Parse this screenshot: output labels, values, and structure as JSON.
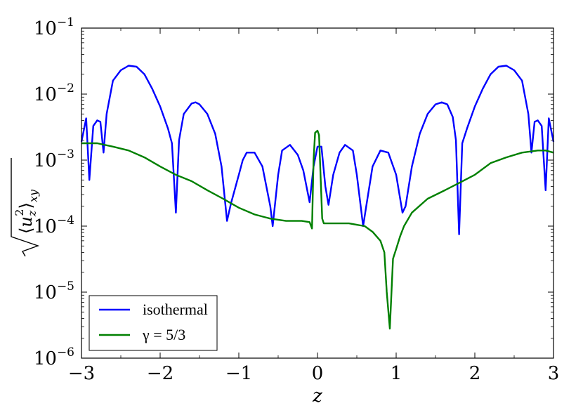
{
  "chart_data": {
    "type": "line",
    "title": "",
    "xlabel": "z",
    "ylabel": "√⟨u_z²⟩_xy",
    "xlim": [
      -3,
      3
    ],
    "ylim": [
      1e-06,
      0.1
    ],
    "yscale": "log",
    "grid": false,
    "legend_position": "lower-left",
    "x_ticks": [
      "−3",
      "−2",
      "−1",
      "0",
      "1",
      "2",
      "3"
    ],
    "y_ticks": [
      {
        "base": "10",
        "exp": "−6"
      },
      {
        "base": "10",
        "exp": "−5"
      },
      {
        "base": "10",
        "exp": "−4"
      },
      {
        "base": "10",
        "exp": "−3"
      },
      {
        "base": "10",
        "exp": "−2"
      },
      {
        "base": "10",
        "exp": "−1"
      }
    ],
    "series": [
      {
        "name": "isothermal",
        "color": "#0000ff",
        "points": [
          [
            -3.0,
            0.0019
          ],
          [
            -2.94,
            0.0043
          ],
          [
            -2.9,
            0.0005
          ],
          [
            -2.85,
            0.0033
          ],
          [
            -2.8,
            0.004
          ],
          [
            -2.76,
            0.0038
          ],
          [
            -2.72,
            0.0013
          ],
          [
            -2.68,
            0.005
          ],
          [
            -2.6,
            0.016
          ],
          [
            -2.5,
            0.023
          ],
          [
            -2.4,
            0.027
          ],
          [
            -2.3,
            0.026
          ],
          [
            -2.2,
            0.02
          ],
          [
            -2.1,
            0.012
          ],
          [
            -2.0,
            0.0065
          ],
          [
            -1.9,
            0.003
          ],
          [
            -1.85,
            0.0018
          ],
          [
            -1.8,
            0.00016
          ],
          [
            -1.76,
            0.002
          ],
          [
            -1.7,
            0.005
          ],
          [
            -1.6,
            0.0072
          ],
          [
            -1.55,
            0.0075
          ],
          [
            -1.5,
            0.007
          ],
          [
            -1.4,
            0.005
          ],
          [
            -1.3,
            0.0025
          ],
          [
            -1.22,
            0.0008
          ],
          [
            -1.15,
            0.00012
          ],
          [
            -1.1,
            0.00022
          ],
          [
            -1.0,
            0.0006
          ],
          [
            -0.95,
            0.001
          ],
          [
            -0.9,
            0.0013
          ],
          [
            -0.8,
            0.0013
          ],
          [
            -0.7,
            0.0008
          ],
          [
            -0.6,
            0.0002
          ],
          [
            -0.57,
            0.0001
          ],
          [
            -0.5,
            0.0006
          ],
          [
            -0.45,
            0.0014
          ],
          [
            -0.35,
            0.0017
          ],
          [
            -0.25,
            0.0012
          ],
          [
            -0.18,
            0.0007
          ],
          [
            -0.1,
            0.00023
          ],
          [
            -0.05,
            0.0008
          ],
          [
            0.0,
            0.0016
          ],
          [
            0.05,
            0.0016
          ],
          [
            0.1,
            0.0004
          ],
          [
            0.14,
            0.00021
          ],
          [
            0.2,
            0.0006
          ],
          [
            0.28,
            0.0013
          ],
          [
            0.35,
            0.0017
          ],
          [
            0.45,
            0.0014
          ],
          [
            0.5,
            0.0006
          ],
          [
            0.58,
            0.0001
          ],
          [
            0.62,
            0.0002
          ],
          [
            0.7,
            0.0008
          ],
          [
            0.8,
            0.0014
          ],
          [
            0.9,
            0.0013
          ],
          [
            1.0,
            0.0006
          ],
          [
            1.08,
            0.00016
          ],
          [
            1.12,
            0.0002
          ],
          [
            1.2,
            0.0008
          ],
          [
            1.3,
            0.0025
          ],
          [
            1.4,
            0.005
          ],
          [
            1.5,
            0.007
          ],
          [
            1.58,
            0.0075
          ],
          [
            1.65,
            0.007
          ],
          [
            1.72,
            0.0045
          ],
          [
            1.76,
            0.002
          ],
          [
            1.8,
            7.5e-05
          ],
          [
            1.84,
            0.0018
          ],
          [
            1.9,
            0.003
          ],
          [
            2.0,
            0.0065
          ],
          [
            2.1,
            0.012
          ],
          [
            2.2,
            0.02
          ],
          [
            2.3,
            0.026
          ],
          [
            2.4,
            0.027
          ],
          [
            2.5,
            0.023
          ],
          [
            2.6,
            0.016
          ],
          [
            2.68,
            0.005
          ],
          [
            2.72,
            0.0013
          ],
          [
            2.76,
            0.0038
          ],
          [
            2.8,
            0.004
          ],
          [
            2.85,
            0.0033
          ],
          [
            2.9,
            0.00035
          ],
          [
            2.94,
            0.0043
          ],
          [
            3.0,
            0.0019
          ]
        ]
      },
      {
        "name": "γ = 5/3",
        "color": "#008000",
        "points": [
          [
            -3.0,
            0.0018
          ],
          [
            -2.8,
            0.0018
          ],
          [
            -2.6,
            0.0016
          ],
          [
            -2.4,
            0.0014
          ],
          [
            -2.2,
            0.0011
          ],
          [
            -2.0,
            0.0008
          ],
          [
            -1.8,
            0.0006
          ],
          [
            -1.6,
            0.00048
          ],
          [
            -1.4,
            0.00035
          ],
          [
            -1.2,
            0.00026
          ],
          [
            -1.0,
            0.00019
          ],
          [
            -0.8,
            0.00015
          ],
          [
            -0.6,
            0.00013
          ],
          [
            -0.4,
            0.00012
          ],
          [
            -0.2,
            0.00012
          ],
          [
            -0.1,
            0.000115
          ],
          [
            -0.07,
            9.2e-05
          ],
          [
            -0.05,
            0.001
          ],
          [
            -0.03,
            0.0026
          ],
          [
            0.0,
            0.0028
          ],
          [
            0.02,
            0.0024
          ],
          [
            0.06,
            0.00013
          ],
          [
            0.08,
            0.00011
          ],
          [
            0.2,
            0.00011
          ],
          [
            0.4,
            0.00011
          ],
          [
            0.6,
            0.0001
          ],
          [
            0.7,
            8.2e-05
          ],
          [
            0.8,
            6e-05
          ],
          [
            0.85,
            4e-05
          ],
          [
            0.88,
            1e-05
          ],
          [
            0.92,
            2.8e-06
          ],
          [
            0.96,
            3.2e-05
          ],
          [
            1.0,
            4.5e-05
          ],
          [
            1.05,
            7e-05
          ],
          [
            1.1,
            0.0001
          ],
          [
            1.2,
            0.00016
          ],
          [
            1.4,
            0.00026
          ],
          [
            1.6,
            0.00034
          ],
          [
            1.8,
            0.00045
          ],
          [
            2.0,
            0.0006
          ],
          [
            2.2,
            0.0009
          ],
          [
            2.4,
            0.0011
          ],
          [
            2.6,
            0.0013
          ],
          [
            2.8,
            0.0014
          ],
          [
            2.9,
            0.0014
          ],
          [
            3.0,
            0.0013
          ]
        ]
      }
    ]
  }
}
